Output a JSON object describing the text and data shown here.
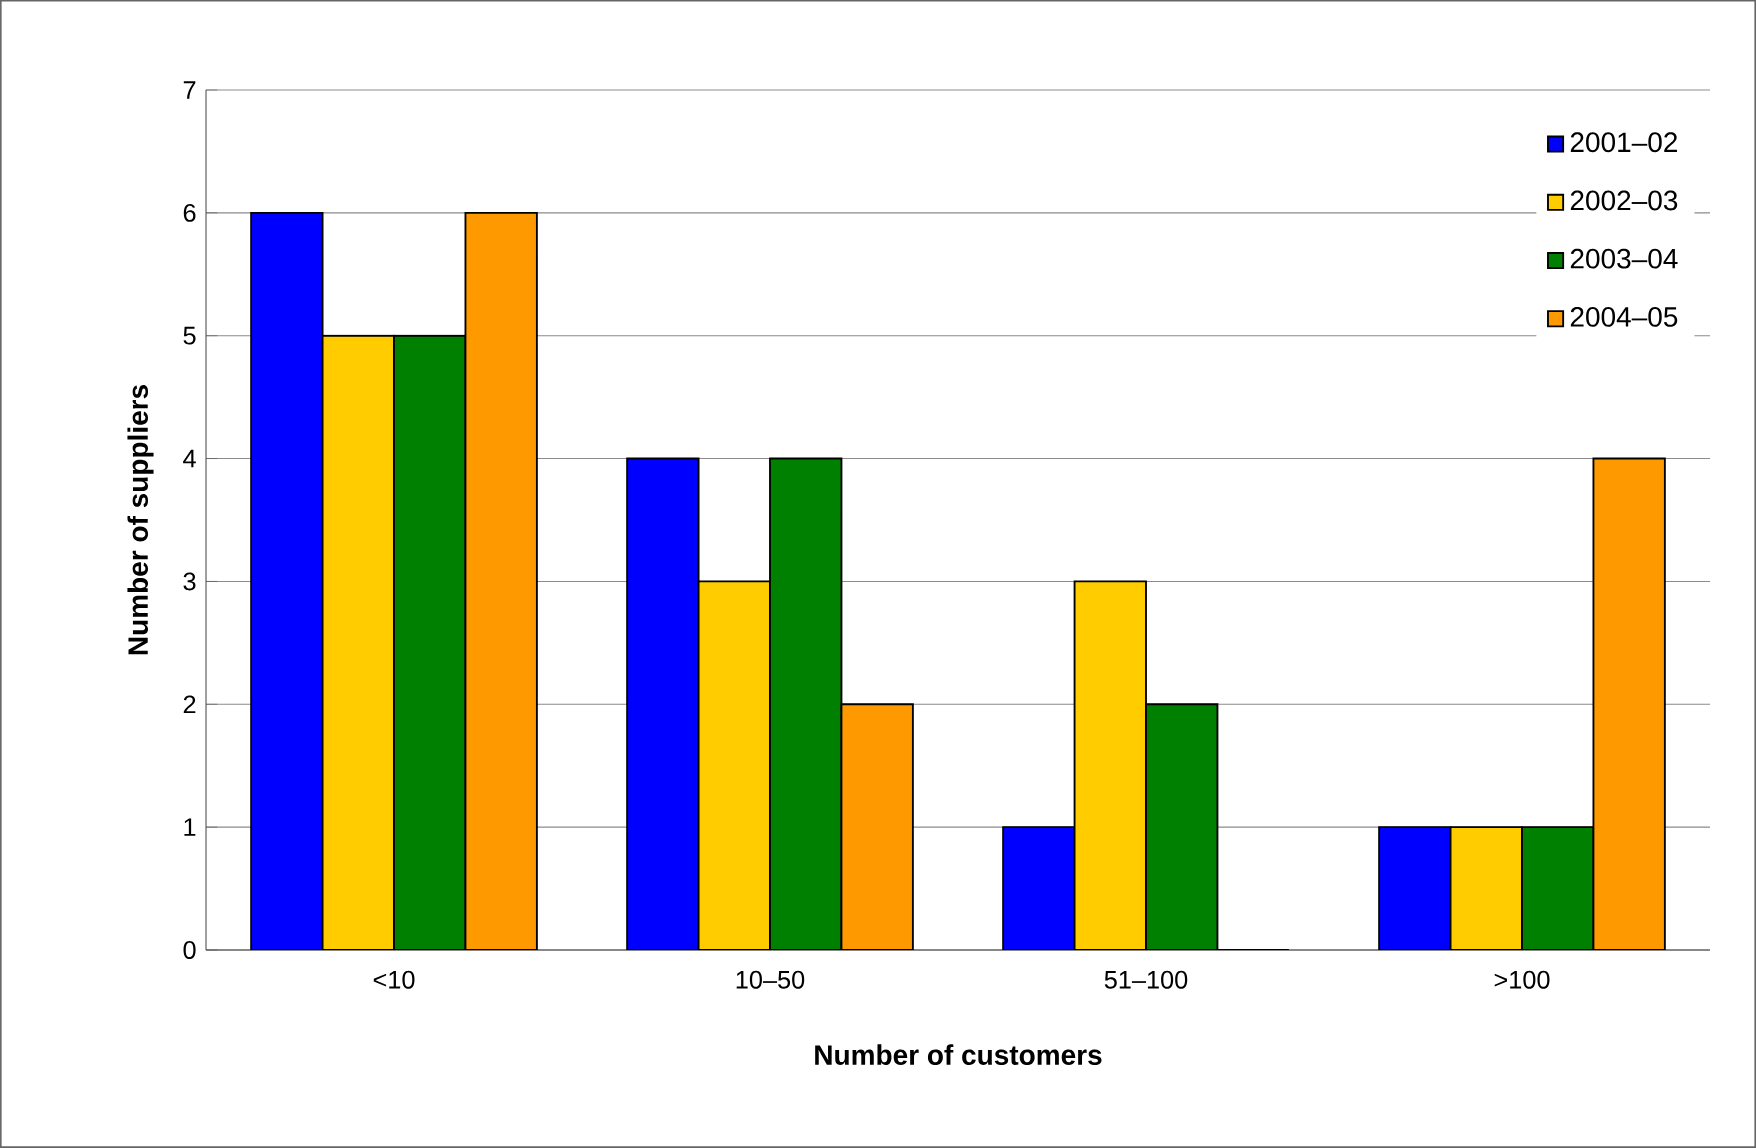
{
  "chart_data": {
    "type": "bar",
    "xlabel": "Number of customers",
    "ylabel": "Number of suppliers",
    "categories": [
      "<10",
      "10–50",
      "51–100",
      ">100"
    ],
    "series": [
      {
        "name": "2001–02",
        "color": "#0000ff",
        "values": [
          6,
          4,
          1,
          1
        ]
      },
      {
        "name": "2002–03",
        "color": "#ffcc00",
        "values": [
          5,
          3,
          3,
          1
        ]
      },
      {
        "name": "2003–04",
        "color": "#008000",
        "values": [
          5,
          4,
          2,
          1
        ]
      },
      {
        "name": "2004–05",
        "color": "#ff9900",
        "values": [
          6,
          2,
          0,
          4
        ]
      }
    ],
    "ylim": [
      0,
      7
    ],
    "yticks": [
      0,
      1,
      2,
      3,
      4,
      5,
      6,
      7
    ],
    "grid": "y",
    "legend": "top right"
  }
}
